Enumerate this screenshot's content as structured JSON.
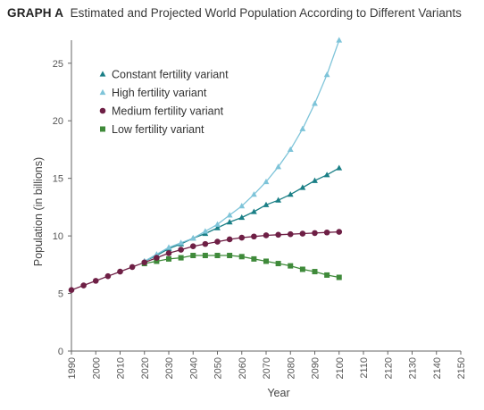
{
  "chart_data": {
    "type": "line",
    "title_label": "GRAPH A",
    "title": "Estimated and Projected World Population According to Different Variants",
    "xlabel": "Year",
    "ylabel": "Population (in billions)",
    "xlim": [
      1990,
      2150
    ],
    "ylim": [
      0,
      27
    ],
    "x_ticks": [
      1990,
      2000,
      2010,
      2020,
      2030,
      2040,
      2050,
      2060,
      2070,
      2080,
      2090,
      2100,
      2110,
      2120,
      2130,
      2140,
      2150
    ],
    "y_ticks": [
      0,
      5,
      10,
      15,
      20,
      25
    ],
    "legend_position": "top-left",
    "series": [
      {
        "name": "Constant fertility variant",
        "color": "#1a7f86",
        "marker": "triangle",
        "x": [
          2020,
          2025,
          2030,
          2035,
          2040,
          2045,
          2050,
          2055,
          2060,
          2065,
          2070,
          2075,
          2080,
          2085,
          2090,
          2095,
          2100
        ],
        "y": [
          7.8,
          8.3,
          8.9,
          9.3,
          9.8,
          10.2,
          10.7,
          11.2,
          11.6,
          12.1,
          12.7,
          13.1,
          13.6,
          14.2,
          14.8,
          15.3,
          15.9
        ]
      },
      {
        "name": "High fertility variant",
        "color": "#7ec4d9",
        "marker": "triangle",
        "x": [
          2020,
          2025,
          2030,
          2035,
          2040,
          2045,
          2050,
          2055,
          2060,
          2065,
          2070,
          2075,
          2080,
          2085,
          2090,
          2095,
          2100
        ],
        "y": [
          7.8,
          8.4,
          9.0,
          9.4,
          9.8,
          10.4,
          11.0,
          11.8,
          12.6,
          13.6,
          14.7,
          16.0,
          17.5,
          19.3,
          21.5,
          24.0,
          27.0
        ]
      },
      {
        "name": "Medium fertility variant",
        "color": "#6e1f45",
        "marker": "circle",
        "x": [
          1990,
          1995,
          2000,
          2005,
          2010,
          2015,
          2020,
          2025,
          2030,
          2035,
          2040,
          2045,
          2050,
          2055,
          2060,
          2065,
          2070,
          2075,
          2080,
          2085,
          2090,
          2095,
          2100
        ],
        "y": [
          5.3,
          5.7,
          6.1,
          6.5,
          6.9,
          7.3,
          7.7,
          8.1,
          8.5,
          8.8,
          9.1,
          9.3,
          9.5,
          9.7,
          9.85,
          9.95,
          10.05,
          10.1,
          10.15,
          10.2,
          10.25,
          10.3,
          10.35
        ]
      },
      {
        "name": "Low fertility variant",
        "color": "#3f8a3a",
        "marker": "square",
        "x": [
          2020,
          2025,
          2030,
          2035,
          2040,
          2045,
          2050,
          2055,
          2060,
          2065,
          2070,
          2075,
          2080,
          2085,
          2090,
          2095,
          2100
        ],
        "y": [
          7.6,
          7.8,
          8.0,
          8.1,
          8.3,
          8.3,
          8.3,
          8.3,
          8.2,
          8.0,
          7.8,
          7.6,
          7.4,
          7.1,
          6.9,
          6.6,
          6.4
        ]
      }
    ]
  }
}
